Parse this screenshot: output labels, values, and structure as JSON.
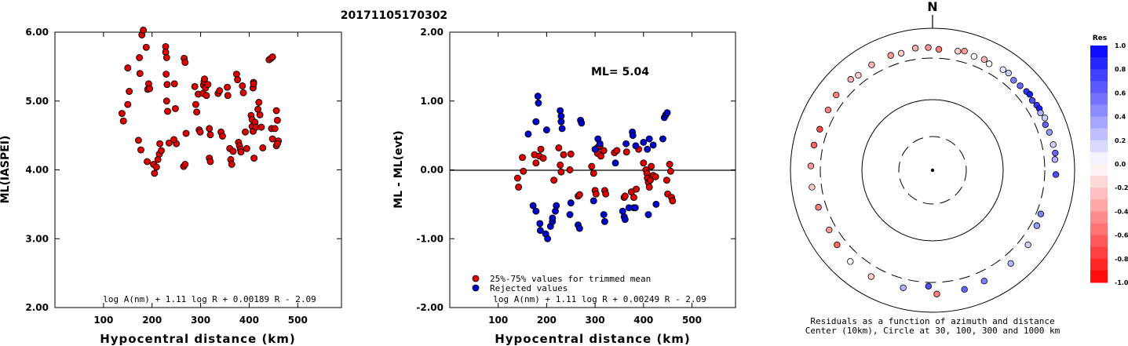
{
  "title": "20171105170302",
  "north_label": "N",
  "chart_data": [
    {
      "type": "scatter",
      "xlabel": "Hypocentral distance (km)",
      "ylabel": "ML(IASPEI)",
      "xlim": [
        0,
        590
      ],
      "ylim": [
        2.0,
        6.0
      ],
      "xticks": [
        "100",
        "200",
        "300",
        "400",
        "500"
      ],
      "yticks": [
        "2.00",
        "3.00",
        "4.00",
        "5.00",
        "6.00"
      ],
      "formula": "log A(nm) + 1.11 log R + 0.00189 R - 2.09",
      "color": "#dd0000",
      "points": [
        [
          138,
          4.82
        ],
        [
          141,
          4.71
        ],
        [
          150,
          5.48
        ],
        [
          150,
          4.95
        ],
        [
          153,
          5.14
        ],
        [
          172,
          4.43
        ],
        [
          174,
          5.63
        ],
        [
          175,
          5.4
        ],
        [
          177,
          4.29
        ],
        [
          179,
          5.96
        ],
        [
          182,
          6.03
        ],
        [
          188,
          5.78
        ],
        [
          190,
          4.12
        ],
        [
          191,
          5.17
        ],
        [
          193,
          5.25
        ],
        [
          195,
          5.18
        ],
        [
          203,
          4.08
        ],
        [
          205,
          3.95
        ],
        [
          209,
          4.04
        ],
        [
          212,
          4.15
        ],
        [
          215,
          4.23
        ],
        [
          216,
          4.38
        ],
        [
          219,
          4.28
        ],
        [
          228,
          5.79
        ],
        [
          228,
          5.71
        ],
        [
          230,
          5.63
        ],
        [
          229,
          5.39
        ],
        [
          231,
          5.24
        ],
        [
          230,
          5.0
        ],
        [
          232,
          4.85
        ],
        [
          235,
          4.39
        ],
        [
          246,
          5.25
        ],
        [
          248,
          4.89
        ],
        [
          250,
          4.38
        ],
        [
          245,
          4.44
        ],
        [
          266,
          5.62
        ],
        [
          268,
          5.56
        ],
        [
          265,
          4.05
        ],
        [
          268,
          4.08
        ],
        [
          270,
          4.53
        ],
        [
          288,
          5.21
        ],
        [
          290,
          4.95
        ],
        [
          292,
          4.84
        ],
        [
          295,
          5.1
        ],
        [
          297,
          4.58
        ],
        [
          299,
          4.55
        ],
        [
          305,
          5.11
        ],
        [
          306,
          5.23
        ],
        [
          307,
          5.28
        ],
        [
          308,
          5.32
        ],
        [
          310,
          5.19
        ],
        [
          312,
          5.08
        ],
        [
          315,
          5.24
        ],
        [
          318,
          4.6
        ],
        [
          320,
          4.51
        ],
        [
          318,
          4.17
        ],
        [
          320,
          4.12
        ],
        [
          336,
          5.11
        ],
        [
          339,
          5.15
        ],
        [
          342,
          4.55
        ],
        [
          345,
          4.49
        ],
        [
          355,
          5.2
        ],
        [
          356,
          5.08
        ],
        [
          360,
          4.31
        ],
        [
          362,
          4.15
        ],
        [
          364,
          4.08
        ],
        [
          367,
          4.27
        ],
        [
          374,
          5.39
        ],
        [
          376,
          5.31
        ],
        [
          378,
          4.4
        ],
        [
          380,
          4.35
        ],
        [
          382,
          4.3
        ],
        [
          383,
          4.26
        ],
        [
          386,
          5.22
        ],
        [
          388,
          5.12
        ],
        [
          392,
          4.55
        ],
        [
          395,
          4.31
        ],
        [
          404,
          4.79
        ],
        [
          406,
          4.73
        ],
        [
          406,
          4.63
        ],
        [
          408,
          4.56
        ],
        [
          408,
          5.19
        ],
        [
          409,
          5.27
        ],
        [
          409,
          5.25
        ],
        [
          410,
          4.17
        ],
        [
          412,
          4.69
        ],
        [
          414,
          4.62
        ],
        [
          418,
          4.88
        ],
        [
          420,
          4.98
        ],
        [
          422,
          4.8
        ],
        [
          425,
          4.62
        ],
        [
          428,
          4.32
        ],
        [
          441,
          5.6
        ],
        [
          445,
          5.62
        ],
        [
          448,
          5.64
        ],
        [
          446,
          4.6
        ],
        [
          448,
          4.45
        ],
        [
          453,
          4.6
        ],
        [
          456,
          4.86
        ],
        [
          458,
          4.72
        ],
        [
          460,
          4.42
        ],
        [
          456,
          4.35
        ],
        [
          458,
          4.38
        ]
      ]
    },
    {
      "type": "scatter",
      "xlabel": "Hypocentral distance (km)",
      "ylabel": "ML - ML(evt)",
      "xlim": [
        0,
        590
      ],
      "ylim": [
        -2.0,
        2.0
      ],
      "xticks": [
        "100",
        "200",
        "300",
        "400",
        "500"
      ],
      "yticks": [
        "-2.00",
        "-1.00",
        "0.00",
        "1.00",
        "2.00"
      ],
      "annotation": "ML= 5.04",
      "formula": "log A(nm) + 1.11 log R + 0.00249 R - 2.09",
      "legend": [
        {
          "label": "25%-75% values for trimmed mean",
          "color": "#dd0000"
        },
        {
          "label": "Rejected values",
          "color": "#0000cc"
        }
      ],
      "series": [
        {
          "name": "25%-75% values for trimmed mean",
          "color": "#dd0000",
          "points": [
            [
              140,
              -0.12
            ],
            [
              142,
              -0.25
            ],
            [
              150,
              0.18
            ],
            [
              152,
              -0.02
            ],
            [
              175,
              0.22
            ],
            [
              178,
              0.1
            ],
            [
              185,
              0.2
            ],
            [
              188,
              0.3
            ],
            [
              193,
              0.17
            ],
            [
              215,
              -0.15
            ],
            [
              225,
              0.32
            ],
            [
              228,
              0.07
            ],
            [
              230,
              -0.03
            ],
            [
              235,
              0.22
            ],
            [
              248,
              0.0
            ],
            [
              250,
              0.23
            ],
            [
              265,
              -0.38
            ],
            [
              268,
              -0.36
            ],
            [
              293,
              0.05
            ],
            [
              297,
              -0.05
            ],
            [
              300,
              -0.3
            ],
            [
              302,
              -0.35
            ],
            [
              305,
              0.24
            ],
            [
              306,
              0.33
            ],
            [
              310,
              0.35
            ],
            [
              312,
              0.2
            ],
            [
              318,
              0.28
            ],
            [
              320,
              -0.3
            ],
            [
              322,
              -0.35
            ],
            [
              340,
              0.25
            ],
            [
              345,
              0.28
            ],
            [
              360,
              -0.4
            ],
            [
              362,
              -0.38
            ],
            [
              365,
              0.26
            ],
            [
              375,
              -0.32
            ],
            [
              380,
              -0.4
            ],
            [
              385,
              -0.28
            ],
            [
              390,
              0.3
            ],
            [
              400,
              0.1
            ],
            [
              405,
              0.0
            ],
            [
              407,
              -0.05
            ],
            [
              408,
              -0.12
            ],
            [
              410,
              -0.18
            ],
            [
              412,
              -0.25
            ],
            [
              414,
              -0.15
            ],
            [
              416,
              0.05
            ],
            [
              420,
              -0.08
            ],
            [
              425,
              -0.1
            ],
            [
              448,
              -0.15
            ],
            [
              450,
              -0.35
            ],
            [
              454,
              0.08
            ],
            [
              456,
              -0.02
            ],
            [
              458,
              -0.4
            ],
            [
              460,
              -0.45
            ]
          ]
        },
        {
          "name": "Rejected values",
          "color": "#0000cc",
          "points": [
            [
              162,
              0.52
            ],
            [
              172,
              -0.52
            ],
            [
              178,
              -0.6
            ],
            [
              178,
              0.7
            ],
            [
              182,
              1.07
            ],
            [
              183,
              0.97
            ],
            [
              186,
              -0.78
            ],
            [
              187,
              -0.88
            ],
            [
              198,
              -0.93
            ],
            [
              200,
              0.58
            ],
            [
              202,
              -1.0
            ],
            [
              208,
              -0.82
            ],
            [
              212,
              -0.75
            ],
            [
              212,
              -0.7
            ],
            [
              218,
              -0.6
            ],
            [
              220,
              -0.52
            ],
            [
              228,
              0.86
            ],
            [
              230,
              0.78
            ],
            [
              230,
              0.7
            ],
            [
              232,
              0.6
            ],
            [
              248,
              -0.65
            ],
            [
              250,
              -0.48
            ],
            [
              265,
              -0.8
            ],
            [
              268,
              -0.85
            ],
            [
              270,
              0.72
            ],
            [
              272,
              0.68
            ],
            [
              297,
              -0.45
            ],
            [
              300,
              0.3
            ],
            [
              306,
              0.45
            ],
            [
              310,
              0.38
            ],
            [
              318,
              -0.65
            ],
            [
              320,
              -0.75
            ],
            [
              342,
              0.1
            ],
            [
              357,
              -0.6
            ],
            [
              360,
              -0.68
            ],
            [
              362,
              -0.72
            ],
            [
              364,
              0.38
            ],
            [
              370,
              -0.55
            ],
            [
              377,
              0.55
            ],
            [
              378,
              0.5
            ],
            [
              380,
              -0.55
            ],
            [
              383,
              -0.55
            ],
            [
              384,
              0.35
            ],
            [
              400,
              0.4
            ],
            [
              408,
              0.3
            ],
            [
              410,
              -0.65
            ],
            [
              412,
              0.45
            ],
            [
              420,
              0.36
            ],
            [
              426,
              -0.5
            ],
            [
              443,
              0.76
            ],
            [
              446,
              0.8
            ],
            [
              449,
              0.83
            ],
            [
              440,
              0.45
            ]
          ]
        }
      ]
    },
    {
      "type": "scatter",
      "caption_line1": "Residuals as a function of azimuth and distance",
      "caption_line2": "Center (10km), Circle at 30, 100, 300 and 1000 km",
      "colorbar_title": "Res",
      "colorbar_ticks": [
        "1.0",
        "0.8",
        "0.6",
        "0.4",
        "0.2",
        "0.0",
        "-0.2",
        "-0.4",
        "-0.6",
        "-0.8",
        "-1.0"
      ],
      "colorbar_range": [
        -1.0,
        1.0
      ],
      "color_positive": "#0000ff",
      "color_negative": "#ff0000",
      "points_azimuth_distance_residual": [
        [
          12,
          440,
          -0.2
        ],
        [
          15,
          470,
          -0.4
        ],
        [
          20,
          430,
          0.0
        ],
        [
          25,
          450,
          -0.3
        ],
        [
          28,
          420,
          0.0
        ],
        [
          35,
          460,
          0.1
        ],
        [
          38,
          470,
          0.2
        ],
        [
          42,
          430,
          0.5
        ],
        [
          46,
          440,
          0.6
        ],
        [
          50,
          455,
          0.8
        ],
        [
          52,
          470,
          0.9
        ],
        [
          55,
          440,
          0.7
        ],
        [
          58,
          460,
          0.8
        ],
        [
          60,
          470,
          0.9
        ],
        [
          62,
          450,
          0.3
        ],
        [
          65,
          480,
          0.2
        ],
        [
          68,
          440,
          0.6
        ],
        [
          72,
          460,
          0.4
        ],
        [
          78,
          470,
          0.2
        ],
        [
          82,
          480,
          0.6
        ],
        [
          85,
          460,
          0.3
        ],
        [
          92,
          470,
          0.7
        ],
        [
          112,
          360,
          0.5
        ],
        [
          118,
          380,
          0.4
        ],
        [
          128,
          430,
          0.2
        ],
        [
          140,
          440,
          0.3
        ],
        [
          155,
          450,
          0.5
        ],
        [
          165,
          470,
          0.6
        ],
        [
          178,
          480,
          -0.5
        ],
        [
          182,
          350,
          0.7
        ],
        [
          194,
          430,
          0.3
        ],
        [
          210,
          460,
          -0.2
        ],
        [
          222,
          460,
          0.0
        ],
        [
          232,
          430,
          -0.6
        ],
        [
          240,
          400,
          -0.4
        ],
        [
          252,
          410,
          -0.5
        ],
        [
          262,
          440,
          -0.2
        ],
        [
          272,
          440,
          -0.4
        ],
        [
          282,
          430,
          -0.6
        ],
        [
          290,
          410,
          -0.7
        ],
        [
          300,
          420,
          -0.5
        ],
        [
          308,
          450,
          -0.5
        ],
        [
          318,
          450,
          -0.3
        ],
        [
          322,
          420,
          -0.2
        ],
        [
          330,
          440,
          -0.3
        ],
        [
          340,
          450,
          -0.4
        ],
        [
          345,
          430,
          -0.2
        ],
        [
          352,
          470,
          -0.3
        ],
        [
          358,
          460,
          -0.4
        ],
        [
          3,
          430,
          -0.5
        ]
      ]
    }
  ]
}
